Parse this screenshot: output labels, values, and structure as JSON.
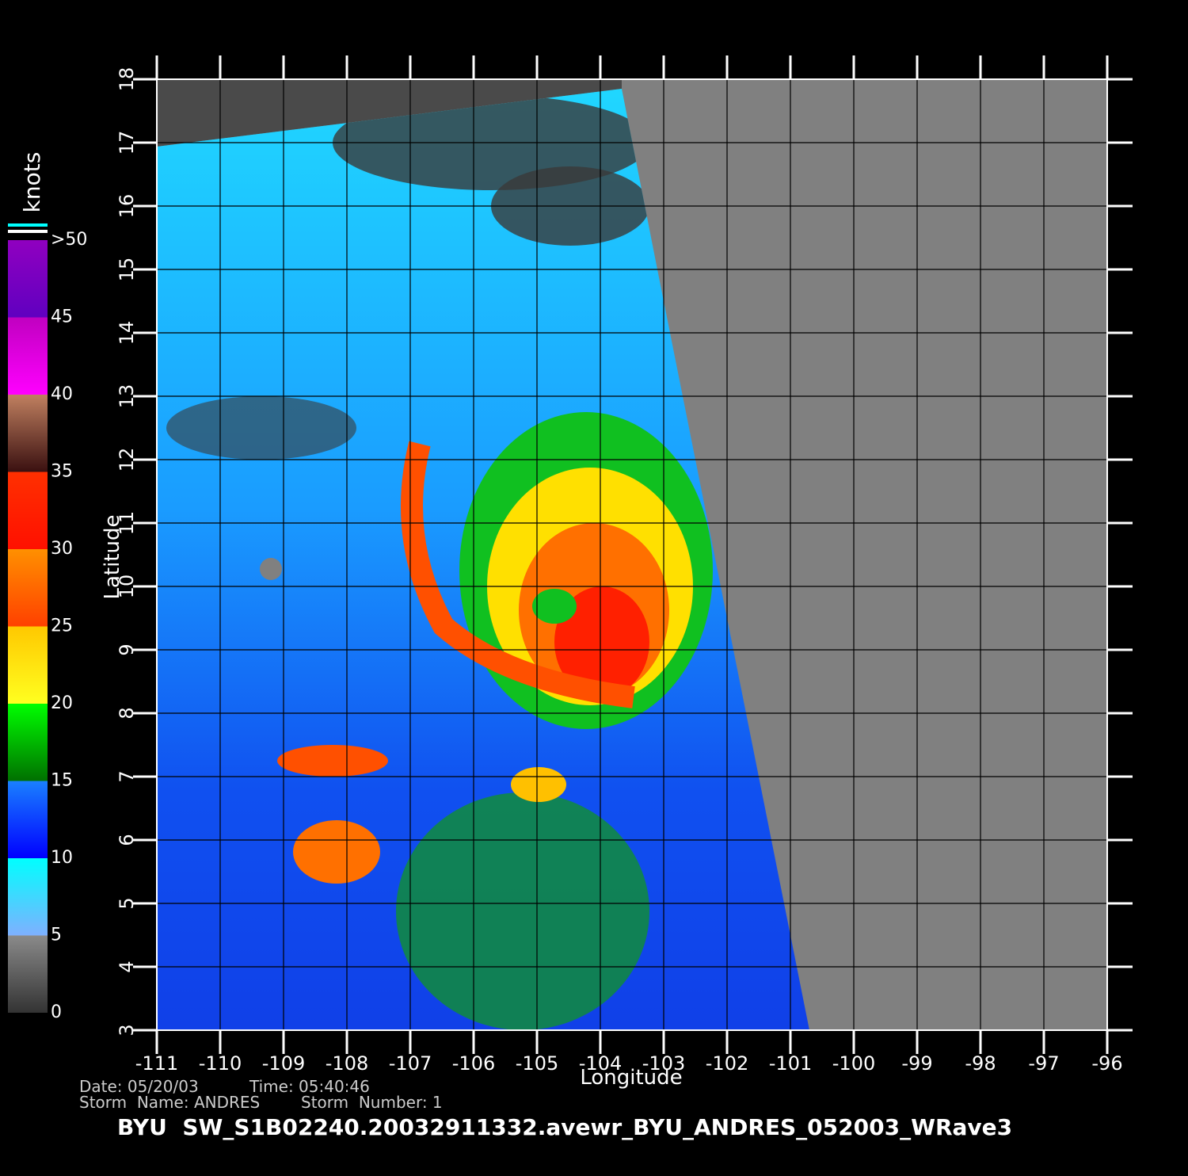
{
  "map": {
    "x_axis": {
      "label": "Longitude",
      "lim": [
        -111,
        -96
      ],
      "ticks": [
        -111,
        -110,
        -109,
        -108,
        -107,
        -106,
        -105,
        -104,
        -103,
        -102,
        -101,
        -100,
        -99,
        -98,
        -97,
        -96
      ]
    },
    "y_axis": {
      "label": "Latitude",
      "lim": [
        3,
        18
      ],
      "ticks": [
        3,
        4,
        5,
        6,
        7,
        8,
        9,
        10,
        11,
        12,
        13,
        14,
        15,
        16,
        17,
        18
      ]
    },
    "colorbar": {
      "unit": "knots",
      "lim": [
        0,
        50
      ],
      "ticks": [
        0,
        5,
        10,
        15,
        20,
        25,
        30,
        35,
        40,
        45,
        {
          "value": 50,
          "label": ">50"
        }
      ],
      "colors": [
        [
          "#333333",
          "#8a8a8a"
        ],
        [
          "#7fb0ff",
          "#00ffff"
        ],
        [
          "#0000ff",
          "#1a80ff"
        ],
        [
          "#007000",
          "#00ff00"
        ],
        [
          "#ffff20",
          "#ffc800"
        ],
        [
          "#ff4000",
          "#ff9000"
        ],
        [
          "#ff1000",
          "#ff3000"
        ],
        [
          "#3a1010",
          "#c08060"
        ],
        [
          "#ff00ff",
          "#c000c0"
        ],
        [
          "#6000c0",
          "#9000c0"
        ]
      ]
    },
    "footer": {
      "date": "Date: 05/20/03",
      "time": "Time: 05:40:46",
      "storm_name": "Storm  Name: ANDRES",
      "storm_number": "Storm  Number: 1",
      "title": "BYU  SW_S1B02240.20032911332.avewr_BYU_ANDRES_052003_WRave3"
    }
  }
}
